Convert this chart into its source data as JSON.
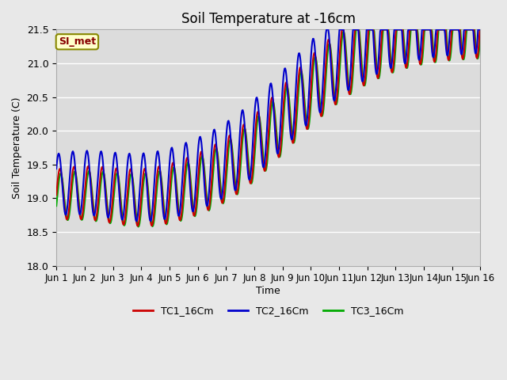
{
  "title": "Soil Temperature at -16cm",
  "ylabel": "Soil Temperature (C)",
  "xlabel": "Time",
  "ylim": [
    18.0,
    21.5
  ],
  "xlim": [
    0,
    15
  ],
  "xtick_labels": [
    "Jun 1",
    "Jun 2",
    "Jun 3",
    "Jun 4",
    "Jun 5",
    "Jun 6",
    "Jun 7",
    "Jun 8",
    "Jun 9",
    "Jun 10",
    "Jun 11",
    "Jun 12",
    "Jun 13",
    "Jun 14",
    "Jun 15",
    "Jun 16"
  ],
  "ytick_values": [
    18.0,
    18.5,
    19.0,
    19.5,
    20.0,
    20.5,
    21.0,
    21.5
  ],
  "colors": {
    "TC1": "#cc0000",
    "TC2": "#0000cc",
    "TC3": "#00aa00"
  },
  "background_color": "#e8e8e8",
  "plot_bg_color": "#dcdcdc",
  "annotation_text": "SI_met",
  "annotation_bg": "#ffffcc",
  "annotation_border": "#888800",
  "legend_labels": [
    "TC1_16Cm",
    "TC2_16Cm",
    "TC3_16Cm"
  ],
  "figsize": [
    6.4,
    4.8
  ],
  "dpi": 100
}
